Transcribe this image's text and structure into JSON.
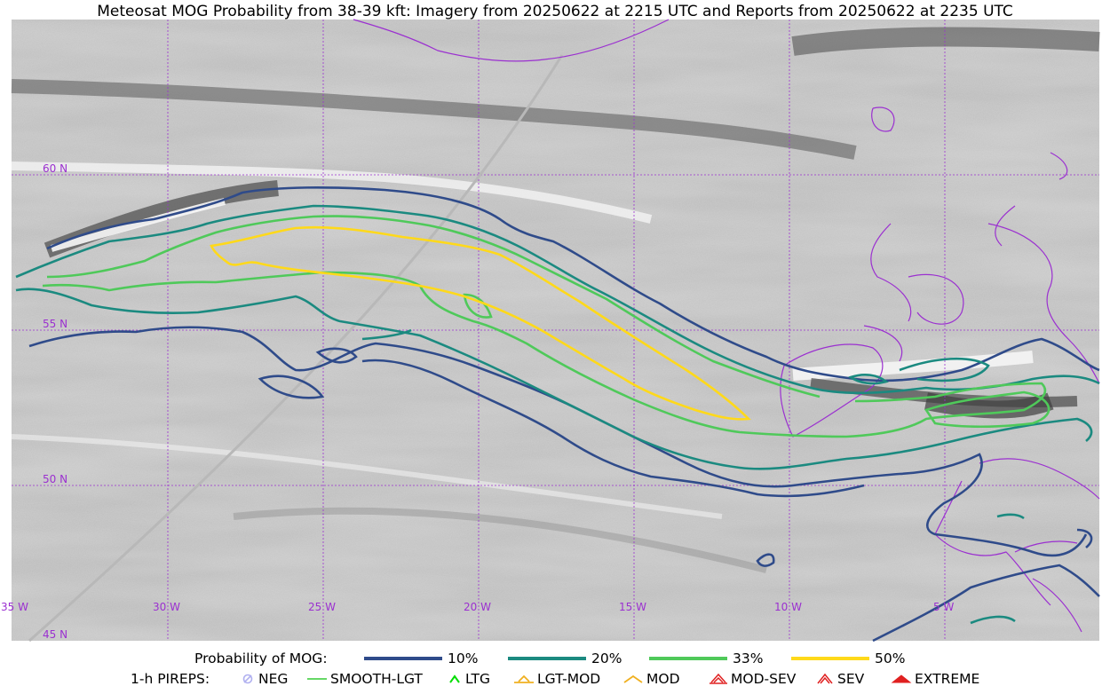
{
  "title": "Meteosat MOG Probability from 38-39 kft: Imagery from 20250622 at 2215 UTC and Reports from 20250622 at 2235 UTC",
  "map": {
    "longitude_labels": [
      "35 W",
      "30 W",
      "25 W",
      "20 W",
      "15 W",
      "10 W",
      "5 W"
    ],
    "latitude_labels": [
      "60 N",
      "55 N",
      "50 N",
      "45 N"
    ],
    "colors": {
      "grid": "#9b30d0",
      "coastline": "#9b30d0",
      "contour_10": "#2f4b8a",
      "contour_20": "#1b8a80",
      "contour_33": "#4fc95a",
      "contour_50": "#ffd91a"
    }
  },
  "legend": {
    "probability_heading": "Probability of MOG:",
    "probability_items": [
      {
        "label": "10%",
        "color": "#2f4b8a"
      },
      {
        "label": "20%",
        "color": "#1b8a80"
      },
      {
        "label": "33%",
        "color": "#4fc95a"
      },
      {
        "label": "50%",
        "color": "#ffd91a"
      }
    ],
    "pirep_heading": "1-h PIREPS:",
    "pirep_items": [
      {
        "label": "NEG",
        "color": "#b0b0f0",
        "icon": "neg-circle-icon"
      },
      {
        "label": "SMOOTH-LGT",
        "color": "#33cc33",
        "icon": "dash-icon"
      },
      {
        "label": "LTG",
        "color": "#00dd00",
        "icon": "caret-icon"
      },
      {
        "label": "LGT-MOD",
        "color": "#f0b020",
        "icon": "caret-bar-icon"
      },
      {
        "label": "MOD",
        "color": "#f0b020",
        "icon": "caret-icon"
      },
      {
        "label": "MOD-SEV",
        "color": "#e02020",
        "icon": "double-caret-bar-icon"
      },
      {
        "label": "SEV",
        "color": "#e02020",
        "icon": "double-caret-icon"
      },
      {
        "label": "EXTREME",
        "color": "#e02020",
        "icon": "filled-caret-icon"
      }
    ]
  }
}
